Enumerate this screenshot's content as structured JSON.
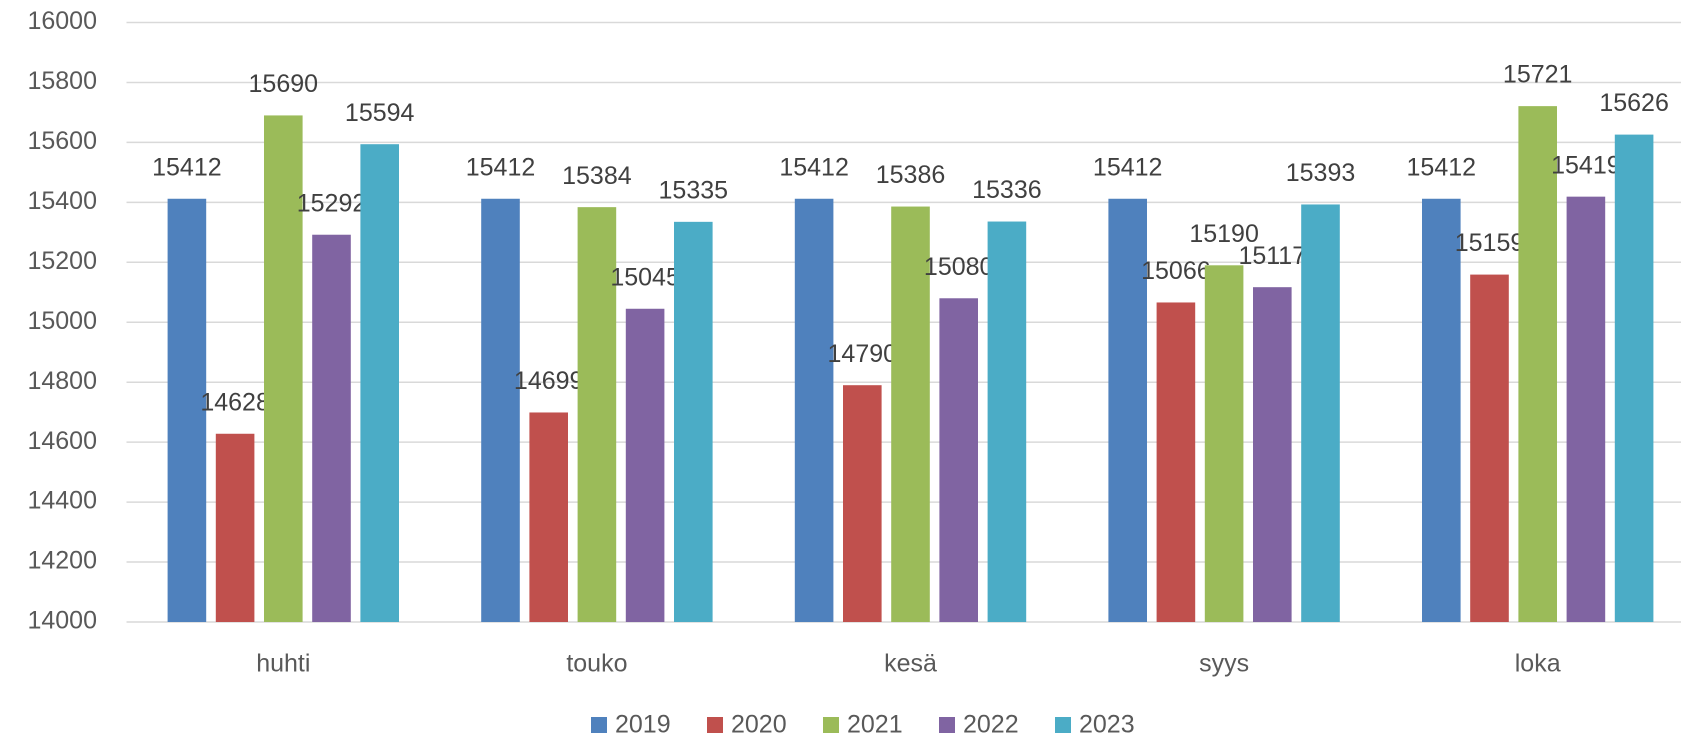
{
  "chart_data": {
    "type": "bar",
    "categories": [
      "huhti",
      "touko",
      "kesä",
      "syys",
      "loka"
    ],
    "series": [
      {
        "name": "2019",
        "color": "#4f81bd",
        "values": [
          15412,
          15412,
          15412,
          15412,
          15412
        ]
      },
      {
        "name": "2020",
        "color": "#c0504d",
        "values": [
          14628,
          14699,
          14790,
          15066,
          15159
        ]
      },
      {
        "name": "2021",
        "color": "#9bbb59",
        "values": [
          15690,
          15384,
          15386,
          15190,
          15721
        ]
      },
      {
        "name": "2022",
        "color": "#8064a2",
        "values": [
          15292,
          15045,
          15080,
          15117,
          15419
        ]
      },
      {
        "name": "2023",
        "color": "#4bacc6",
        "values": [
          15594,
          15335,
          15336,
          15393,
          15626
        ]
      }
    ],
    "ylim": [
      14000,
      16000
    ],
    "yticks": [
      14000,
      14200,
      14400,
      14600,
      14800,
      15000,
      15200,
      15400,
      15600,
      15800,
      16000
    ],
    "grid": true,
    "legend": "bottom"
  }
}
